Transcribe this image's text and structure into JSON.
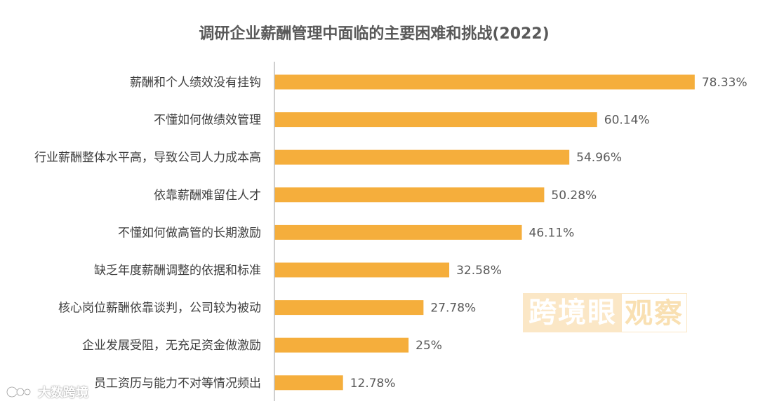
{
  "chart_data": {
    "type": "bar",
    "orientation": "horizontal",
    "title": "调研企业薪酬管理中面临的主要困难和挑战(2022)",
    "categories": [
      "薪酬和个人绩效没有挂钩",
      "不懂如何做绩效管理",
      "行业薪酬整体水平高，导致公司人力成本高",
      "依靠薪酬难留住人才",
      "不懂如何做高管的长期激励",
      "缺乏年度薪酬调整的依据和标准",
      "核心岗位薪酬依靠谈判，公司较为被动",
      "企业发展受阻，无充足资金做激励",
      "员工资历与能力不对等情况频出"
    ],
    "values": [
      78.33,
      60.14,
      54.96,
      50.28,
      46.11,
      32.58,
      27.78,
      25,
      12.78
    ],
    "value_labels": [
      "78.33%",
      "60.14%",
      "54.96%",
      "50.28%",
      "46.11%",
      "32.58%",
      "27.78%",
      "25%",
      "12.78%"
    ],
    "xlim": [
      0,
      100
    ],
    "bar_color": "#f5ae3c",
    "grid": false,
    "xlabel": "",
    "ylabel": ""
  },
  "watermark": {
    "brand_left": "跨境眼",
    "brand_right": "观察",
    "source": "大数跨境"
  }
}
